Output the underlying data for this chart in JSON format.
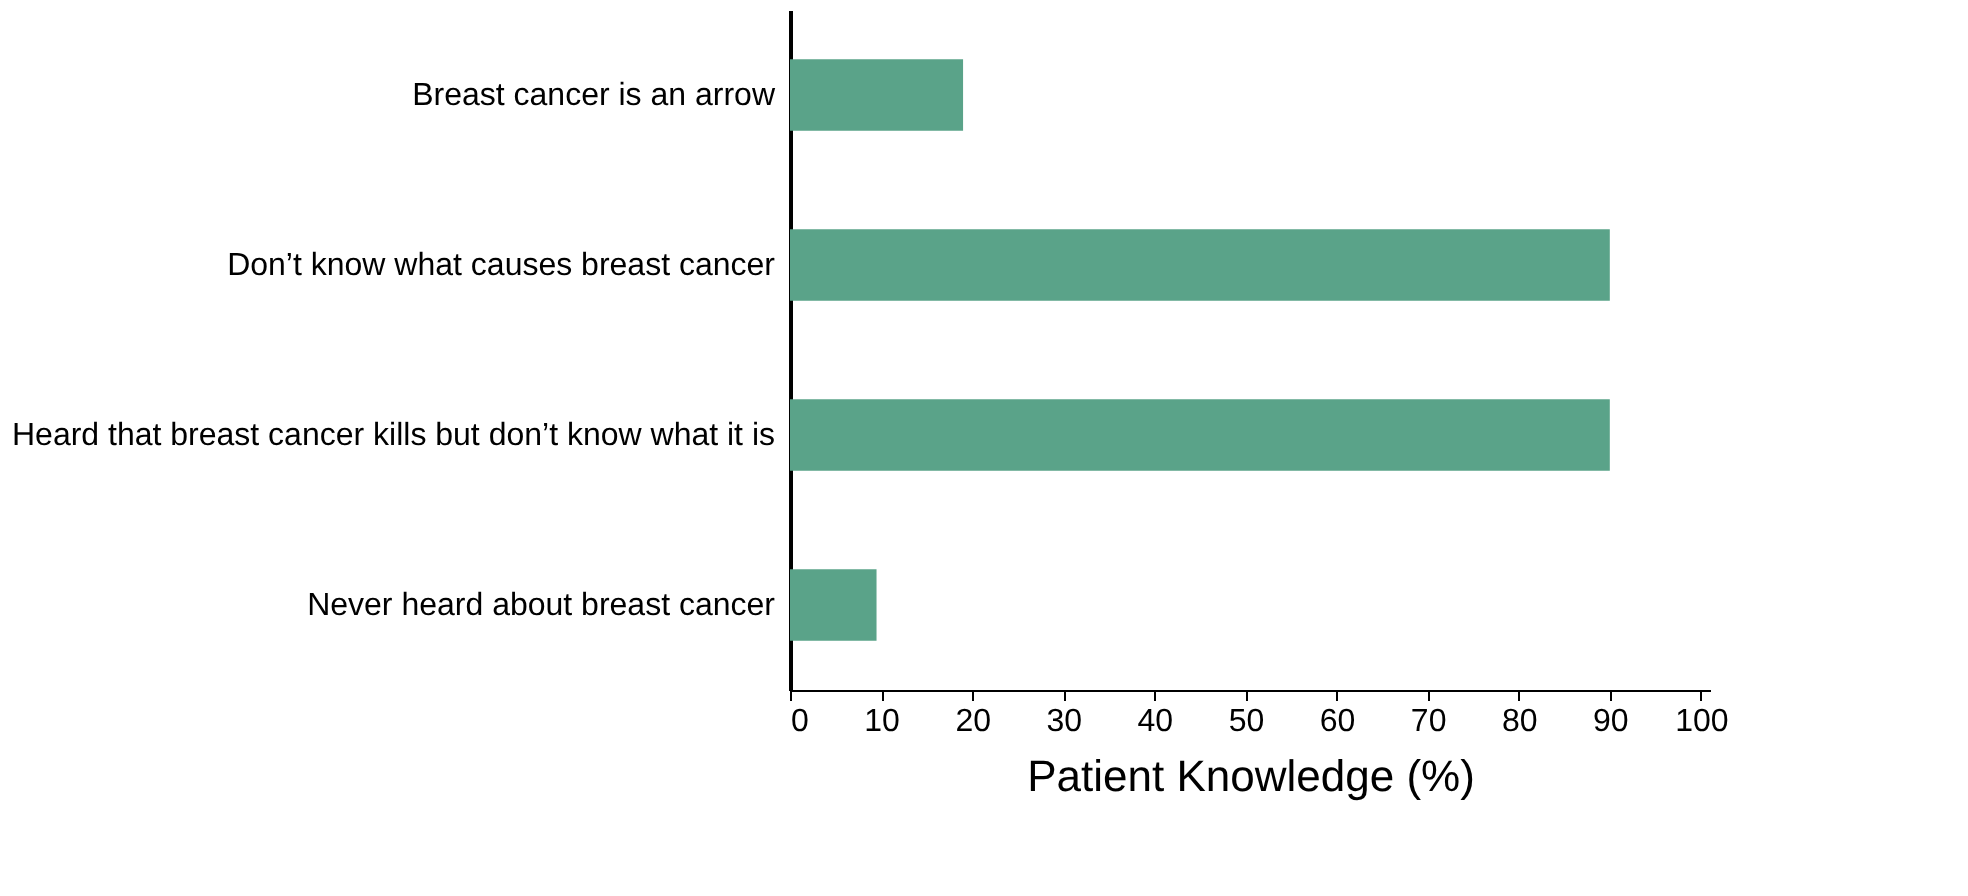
{
  "chart_data": {
    "type": "bar",
    "orientation": "horizontal",
    "xlabel": "Patient  Knowledge (%)",
    "categories": [
      "Breast cancer is an arrow",
      "Don’t know what causes breast cancer",
      "Heard that breast cancer kills but don’t know what it is",
      "Never heard about breast cancer"
    ],
    "values": [
      19,
      90,
      90,
      9.5
    ],
    "color": "#5aa389",
    "xlim": [
      0,
      101
    ],
    "xticks": [
      0,
      10,
      20,
      30,
      40,
      50,
      60,
      70,
      80,
      90,
      100
    ],
    "grid": false
  }
}
